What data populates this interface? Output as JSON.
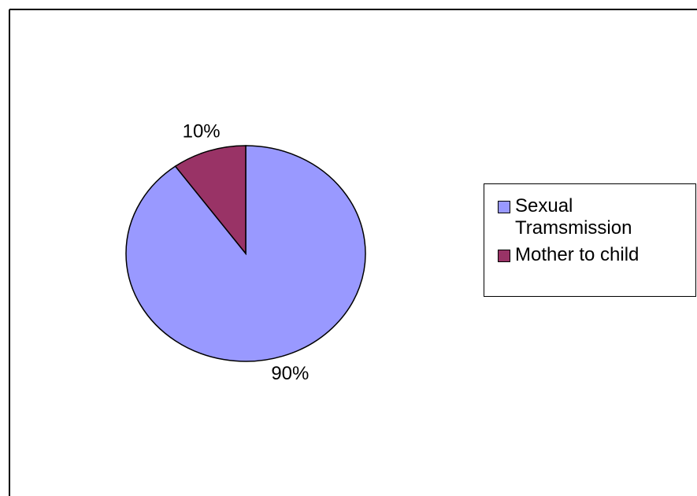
{
  "chart_data": {
    "type": "pie",
    "series": [
      {
        "name": "Sexual Tramsmission",
        "color": "#9999ff",
        "values": [
          90
        ],
        "value_labels": [
          "90%"
        ]
      },
      {
        "name": "Mother to child",
        "color": "#993366",
        "values": [
          10
        ],
        "value_labels": [
          "10%"
        ]
      }
    ],
    "legend": "right"
  }
}
